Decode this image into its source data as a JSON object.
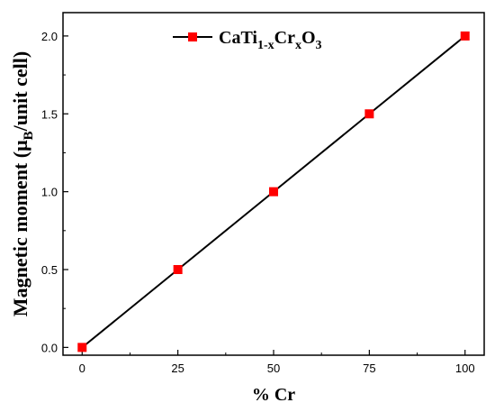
{
  "chart_data": {
    "type": "line",
    "title": "",
    "xlabel": "% Cr",
    "ylabel": {
      "pre": "Magnetic moment (",
      "mu": "μ",
      "sub": "B",
      "post": "/unit cell)"
    },
    "xlim": [
      -5,
      105
    ],
    "ylim": [
      -0.05,
      2.15
    ],
    "x_ticks": [
      0,
      25,
      50,
      75,
      100
    ],
    "y_ticks": [
      0.0,
      0.5,
      1.0,
      1.5,
      2.0
    ],
    "x_tick_labels": [
      "0",
      "25",
      "50",
      "75",
      "100"
    ],
    "y_tick_labels": [
      "0.0",
      "0.5",
      "1.0",
      "1.5",
      "2.0"
    ],
    "grid": false,
    "legend_position": "top-right",
    "series": [
      {
        "name": {
          "p1": "CaTi",
          "s1": "1-x",
          "p2": "Cr",
          "s2": "x",
          "p3": "O",
          "s3": "3"
        },
        "x": [
          0,
          25,
          50,
          75,
          100
        ],
        "y": [
          0.0,
          0.5,
          1.0,
          1.5,
          2.0
        ],
        "line_color": "#000000",
        "marker": "square",
        "marker_color": "#ff0000"
      }
    ]
  }
}
